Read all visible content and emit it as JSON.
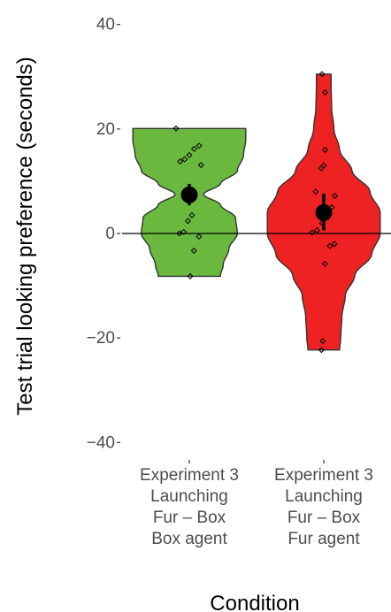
{
  "chart_data": {
    "type": "violin",
    "ylabel": "Test trial looking preference (seconds)",
    "xlabel": "Condition",
    "ylim": [
      -43,
      43
    ],
    "yticks": [
      -40,
      -20,
      0,
      20,
      40
    ],
    "yticklabels": [
      "−40",
      "−20",
      "0",
      "20",
      "40"
    ],
    "reference_line": 0,
    "categories": [
      [
        "Experiment 3",
        "Launching",
        "Fur – Box",
        "Box agent"
      ],
      [
        "Experiment 3",
        "Launching",
        "Fur – Box",
        "Fur agent"
      ]
    ],
    "series": [
      {
        "color": "#6ab93e",
        "range": [
          -8.2,
          20.1
        ],
        "density": [
          [
            -8.2,
            0.55
          ],
          [
            -6,
            0.6
          ],
          [
            -3,
            0.7
          ],
          [
            0,
            0.85
          ],
          [
            3,
            0.82
          ],
          [
            5.5,
            0.55
          ],
          [
            7.5,
            0.25
          ],
          [
            9.5,
            0.55
          ],
          [
            12,
            0.85
          ],
          [
            15,
            0.96
          ],
          [
            18,
            1.0
          ],
          [
            20.1,
            1.0
          ]
        ],
        "mean": 7.4,
        "error": [
          5.4,
          9.5
        ],
        "points": [
          20.1,
          16.8,
          16.2,
          15.0,
          14.2,
          13.8,
          13.1,
          8.0,
          3.5,
          2.4,
          0.3,
          0.0,
          -0.6,
          -3.3,
          -8.2
        ]
      },
      {
        "color": "#ee2123",
        "range": [
          -22.3,
          30.5
        ],
        "density": [
          [
            -22.3,
            0.28
          ],
          [
            -20,
            0.3
          ],
          [
            -16,
            0.32
          ],
          [
            -12,
            0.38
          ],
          [
            -8,
            0.55
          ],
          [
            -4,
            0.85
          ],
          [
            0,
            1.0
          ],
          [
            4,
            1.0
          ],
          [
            8,
            0.82
          ],
          [
            12,
            0.5
          ],
          [
            16,
            0.28
          ],
          [
            20,
            0.18
          ],
          [
            24,
            0.14
          ],
          [
            28,
            0.13
          ],
          [
            30.5,
            0.13
          ]
        ],
        "mean": 4.0,
        "error": [
          0.6,
          7.6
        ],
        "points": [
          30.5,
          27.0,
          16.0,
          13.0,
          12.5,
          8.0,
          7.2,
          5.0,
          4.6,
          2.0,
          0.6,
          0.2,
          -2.0,
          -2.4,
          -5.8,
          -20.6,
          -22.3
        ]
      }
    ]
  }
}
